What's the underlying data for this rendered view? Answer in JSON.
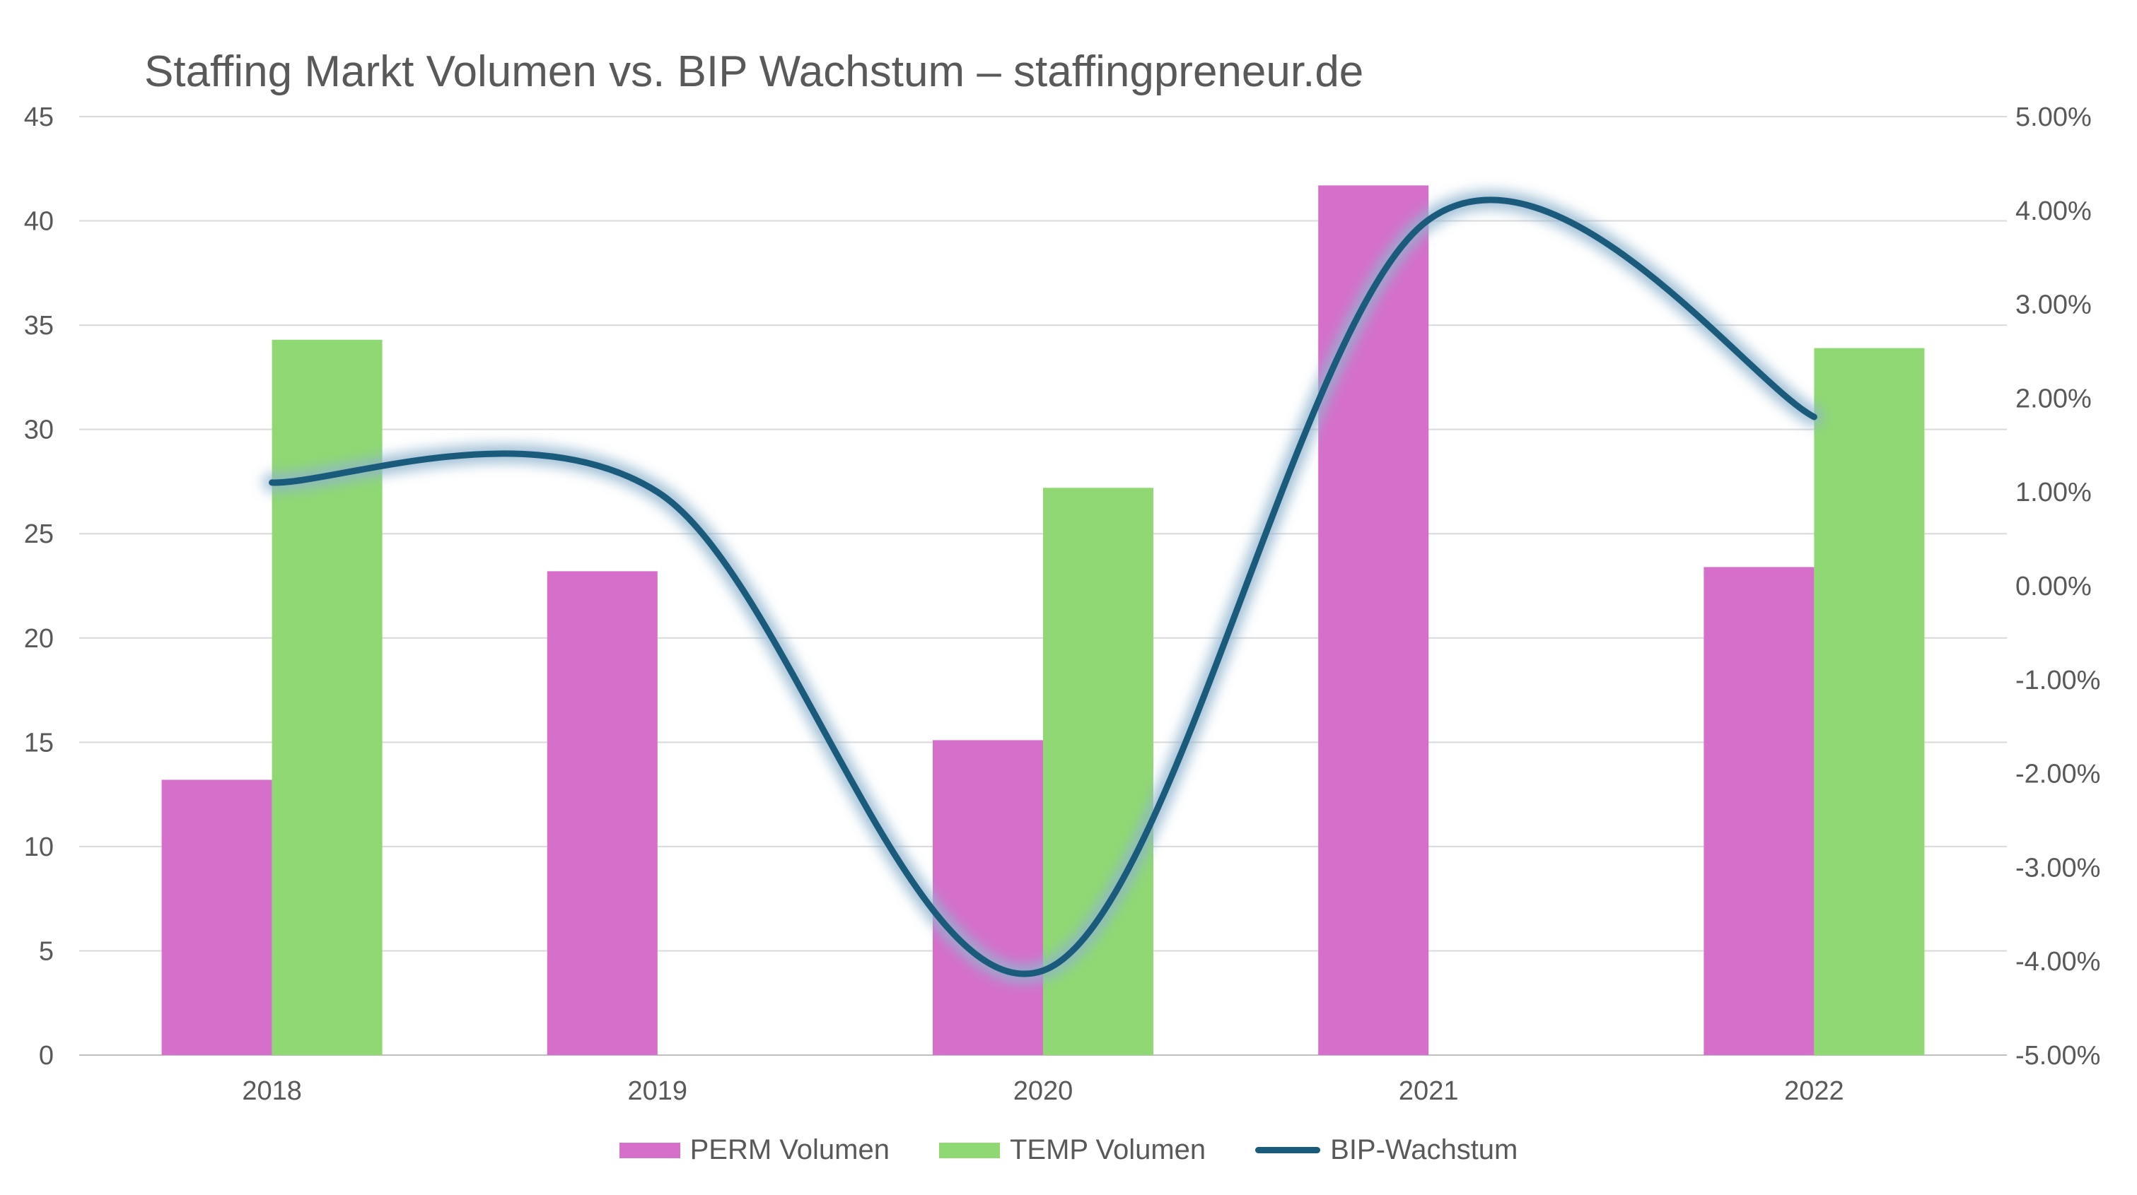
{
  "chart_data": {
    "type": "bar",
    "title": "Staffing Markt Volumen vs. BIP Wachstum – staffingpreneur.de",
    "categories": [
      "2018",
      "2019",
      "2020",
      "2021",
      "2022"
    ],
    "series": [
      {
        "name": "PERM Volumen",
        "type": "bar",
        "axis": "left",
        "color": "#d56fca",
        "values": [
          13.2,
          23.2,
          15.1,
          41.7,
          23.4
        ]
      },
      {
        "name": "TEMP Volumen",
        "type": "bar",
        "axis": "left",
        "color": "#8fd873",
        "values": [
          34.3,
          null,
          27.2,
          null,
          33.9
        ]
      },
      {
        "name": "BIP-Wachstum",
        "type": "line",
        "axis": "right",
        "color": "#1a5a7a",
        "values": [
          0.011,
          0.01,
          -0.041,
          0.039,
          0.018
        ]
      }
    ],
    "y_left": {
      "ylim": [
        0,
        45
      ],
      "ticks": [
        "0",
        "5",
        "10",
        "15",
        "20",
        "25",
        "30",
        "35",
        "40",
        "45"
      ]
    },
    "y_right": {
      "ylim": [
        -0.05,
        0.05
      ],
      "ticks": [
        "-5.00%",
        "-4.00%",
        "-3.00%",
        "-2.00%",
        "-1.00%",
        "0.00%",
        "1.00%",
        "2.00%",
        "3.00%",
        "4.00%",
        "5.00%"
      ]
    },
    "grid": true,
    "legend_position": "bottom"
  }
}
